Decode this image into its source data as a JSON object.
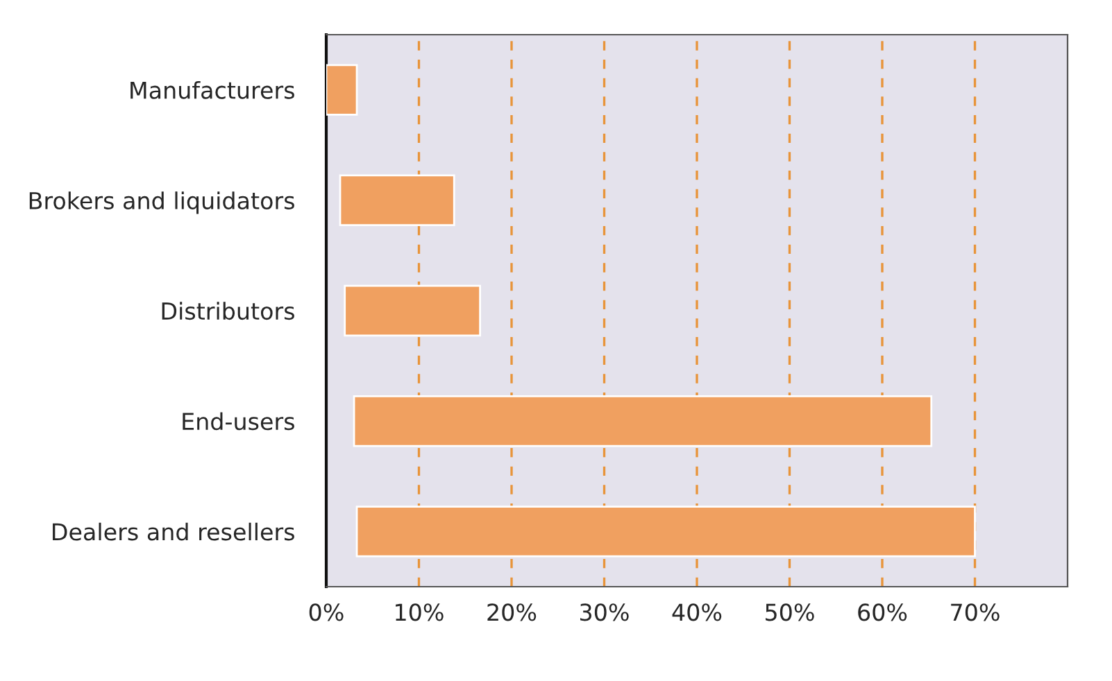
{
  "chart_data": {
    "type": "bar",
    "orientation": "horizontal",
    "categories": [
      "Manufacturers",
      "Brokers and liquidators",
      "Distributors",
      "End-users",
      "Dealers and resellers"
    ],
    "base": [
      0,
      1.5,
      2,
      3,
      3.3
    ],
    "values": [
      3.3,
      12.3,
      14.6,
      62.3,
      66.7
    ],
    "color": "#f0a060",
    "xlim": [
      0,
      80
    ],
    "xticks": [
      {
        "value": 0,
        "label": "0%"
      },
      {
        "value": 10,
        "label": "10%"
      },
      {
        "value": 20,
        "label": "20%"
      },
      {
        "value": 30,
        "label": "30%"
      },
      {
        "value": 40,
        "label": "40%"
      },
      {
        "value": 50,
        "label": "50%"
      },
      {
        "value": 60,
        "label": "60%"
      },
      {
        "value": 70,
        "label": "70%"
      }
    ],
    "grid": "x"
  }
}
